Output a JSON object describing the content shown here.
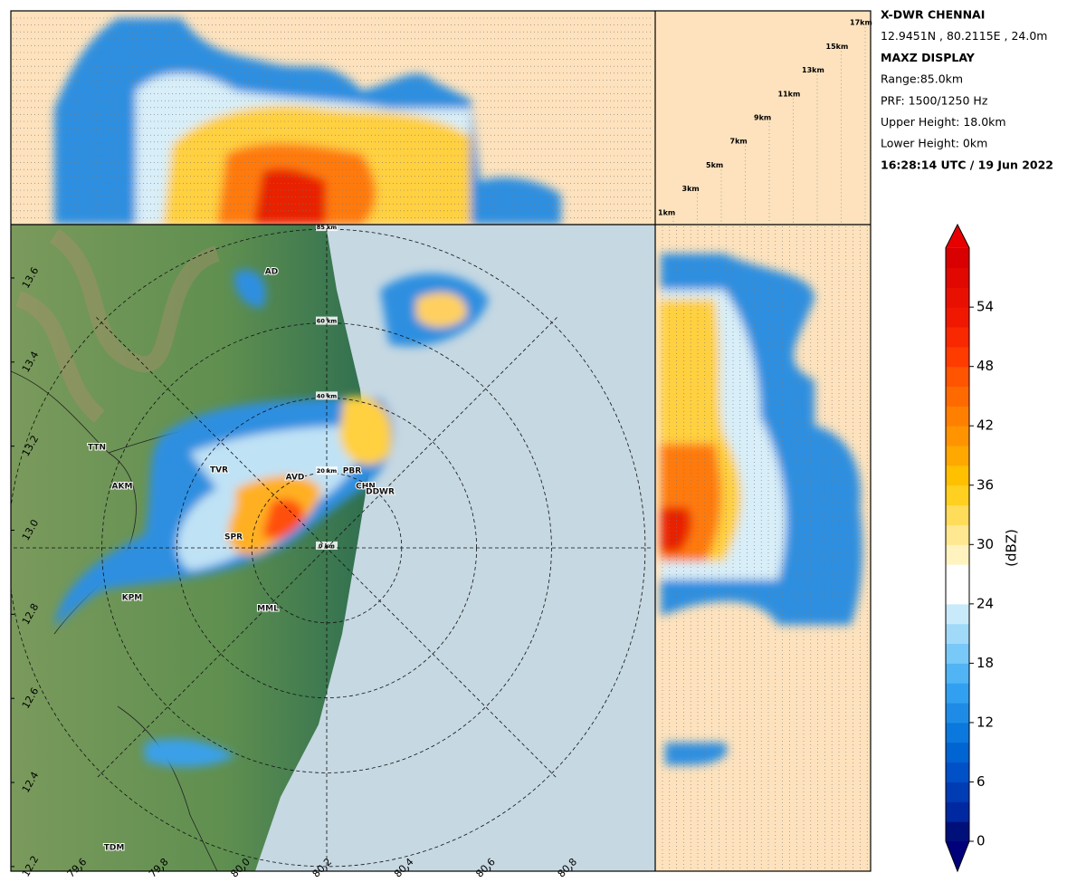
{
  "info": [
    "X-DWR CHENNAI",
    "12.9451N , 80.2115E , 24.0m",
    "MAXZ DISPLAY",
    "Range:85.0km",
    "PRF: 1500/1250 Hz",
    "Upper Height: 18.0km",
    "Lower Height: 0km",
    "16:28:14 UTC / 19 Jun 2022"
  ],
  "map": {
    "xlim": [
      79.427,
      81.004
    ],
    "ylim": [
      12.189,
      13.727
    ],
    "lon_ticks": [
      79.6,
      79.8,
      {
        "value": 80.0,
        "label": "80.0"
      },
      80.2,
      80.4,
      80.6,
      80.8
    ],
    "lat_ticks": [
      12.2,
      12.4,
      12.6,
      12.8,
      {
        "value": 13.0,
        "label": "13.0"
      },
      13.2,
      13.4,
      13.6
    ],
    "range_rings": [
      {
        "value": 0,
        "label": "0 km"
      },
      {
        "value": 20,
        "label": "20 km"
      },
      {
        "value": 40,
        "label": "40 km"
      },
      {
        "value": 60,
        "label": "60 km"
      },
      {
        "value": 85,
        "label": "85 km"
      }
    ],
    "places": [
      "AD",
      "TTN",
      "AKM",
      "TVR",
      "AVD",
      "PBR",
      "CHN",
      "DDWR",
      "SPR",
      "KPM",
      "MML",
      "TDM"
    ]
  },
  "height_panel": {
    "ylim": [
      0,
      18
    ],
    "ticks": [
      {
        "value": 1,
        "label": "1km"
      },
      {
        "value": 3,
        "label": "3km"
      },
      {
        "value": 5,
        "label": "5km"
      },
      {
        "value": 7,
        "label": "7km"
      },
      {
        "value": 9,
        "label": "9km"
      },
      {
        "value": 11,
        "label": "11km"
      },
      {
        "value": 13,
        "label": "13km"
      },
      {
        "value": 15,
        "label": "15km"
      },
      {
        "value": 17,
        "label": "17km"
      }
    ]
  },
  "colorbar": {
    "label": "(dBZ)",
    "ylim": [
      0,
      60
    ],
    "ticks": [
      0,
      6,
      12,
      18,
      24,
      30,
      36,
      42,
      48,
      54
    ],
    "colors": [
      "#00107a",
      "#0028a0",
      "#003cb4",
      "#0050c8",
      "#0064d2",
      "#0a78dc",
      "#1e8ce6",
      "#32a0f0",
      "#50b4f5",
      "#78c8f8",
      "#a0daf8",
      "#c8eafa",
      "#ffffff",
      "#ffffff",
      "#fff4c0",
      "#ffe890",
      "#ffdc5a",
      "#ffd020",
      "#ffc000",
      "#ffa800",
      "#ff9400",
      "#ff8000",
      "#ff6a00",
      "#ff5400",
      "#ff3c00",
      "#f82800",
      "#f01800",
      "#e81000",
      "#e00800",
      "#d80000"
    ],
    "under_color": "#00007a",
    "over_color": "#e80000"
  }
}
